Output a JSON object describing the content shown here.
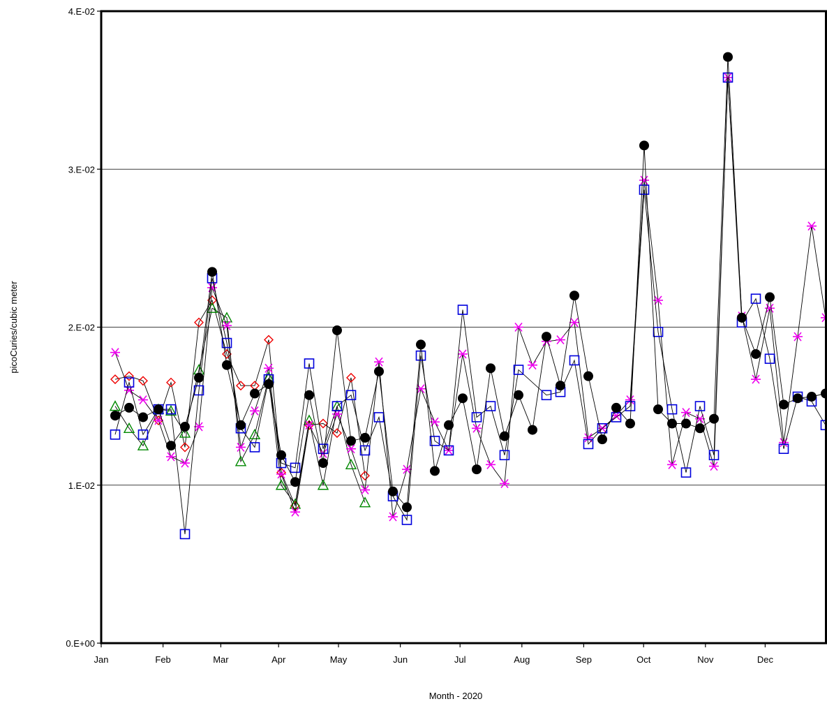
{
  "chart_data": {
    "type": "line",
    "title": "",
    "xlabel": "Month - 2020",
    "ylabel": "picoCuries/cubic meter",
    "ylim": [
      0,
      0.04
    ],
    "yticks": [
      {
        "value": 0,
        "label": "0.E+00"
      },
      {
        "value": 0.01,
        "label": "1.E-02"
      },
      {
        "value": 0.02,
        "label": "2.E-02"
      },
      {
        "value": 0.03,
        "label": "3.E-02"
      },
      {
        "value": 0.04,
        "label": "4.E-02"
      }
    ],
    "grid": "horizontal",
    "legend": "none",
    "xlim": [
      1,
      53
    ],
    "x_unit": "week of 2020 (1 = first of Jan, ticks at first of each month)",
    "xticks": [
      {
        "value": 1.0,
        "label": "Jan"
      },
      {
        "value": 5.43,
        "label": "Feb"
      },
      {
        "value": 9.57,
        "label": "Mar"
      },
      {
        "value": 13.71,
        "label": "Apr"
      },
      {
        "value": 18.0,
        "label": "May"
      },
      {
        "value": 22.43,
        "label": "Jun"
      },
      {
        "value": 26.71,
        "label": "Jul"
      },
      {
        "value": 31.14,
        "label": "Aug"
      },
      {
        "value": 35.57,
        "label": "Sep"
      },
      {
        "value": 39.86,
        "label": "Oct"
      },
      {
        "value": 44.29,
        "label": "Nov"
      },
      {
        "value": 48.57,
        "label": "Dec"
      }
    ],
    "series": [
      {
        "marker": "circle",
        "color": "#000000",
        "points": [
          [
            2.0,
            0.0144
          ],
          [
            3.0,
            0.0149
          ],
          [
            4.0,
            0.0143
          ],
          [
            5.1,
            0.0148
          ],
          [
            6.0,
            0.0125
          ],
          [
            7.0,
            0.0137
          ],
          [
            8.0,
            0.0168
          ],
          [
            8.95,
            0.0235
          ],
          [
            10.0,
            0.0176
          ],
          [
            11.0,
            0.0138
          ],
          [
            12.0,
            0.0158
          ],
          [
            13.0,
            0.0164
          ],
          [
            13.9,
            0.0119
          ],
          [
            14.9,
            0.0102
          ],
          [
            15.9,
            0.0157
          ],
          [
            16.9,
            0.0114
          ],
          [
            17.9,
            0.0198
          ],
          [
            18.9,
            0.0128
          ],
          [
            19.9,
            0.013
          ],
          [
            20.9,
            0.0172
          ],
          [
            21.9,
            0.0096
          ],
          [
            22.9,
            0.0086
          ],
          [
            23.9,
            0.0189
          ],
          [
            24.9,
            0.0109
          ],
          [
            25.9,
            0.0138
          ],
          [
            26.9,
            0.0155
          ],
          [
            27.9,
            0.011
          ],
          [
            28.9,
            0.0174
          ],
          [
            29.9,
            0.0131
          ],
          [
            30.9,
            0.0157
          ],
          [
            31.9,
            0.0135
          ],
          [
            32.9,
            0.0194
          ],
          [
            33.9,
            0.0163
          ],
          [
            34.9,
            0.022
          ],
          [
            35.9,
            0.0169
          ],
          [
            36.9,
            0.0129
          ],
          [
            37.9,
            0.0149
          ],
          [
            38.9,
            0.0139
          ],
          [
            39.9,
            0.0315
          ],
          [
            40.9,
            0.0148
          ],
          [
            41.9,
            0.0139
          ],
          [
            42.9,
            0.0139
          ],
          [
            43.9,
            0.0136
          ],
          [
            44.9,
            0.0142
          ],
          [
            45.9,
            0.0371
          ],
          [
            46.9,
            0.0206
          ],
          [
            47.9,
            0.0183
          ],
          [
            48.9,
            0.0219
          ],
          [
            49.9,
            0.0151
          ],
          [
            50.9,
            0.0155
          ],
          [
            51.9,
            0.0156
          ],
          [
            52.9,
            0.0158
          ]
        ]
      },
      {
        "marker": "square",
        "color": "#0000dd",
        "points": [
          [
            2.0,
            0.0132
          ],
          [
            3.0,
            0.0165
          ],
          [
            4.0,
            0.0132
          ],
          [
            5.1,
            0.0148
          ],
          [
            6.0,
            0.0148
          ],
          [
            7.0,
            0.0069
          ],
          [
            8.0,
            0.016
          ],
          [
            8.95,
            0.0231
          ],
          [
            10.0,
            0.019
          ],
          [
            11.0,
            0.0136
          ],
          [
            12.0,
            0.0124
          ],
          [
            13.0,
            0.0167
          ],
          [
            13.9,
            0.0114
          ],
          [
            14.9,
            0.0111
          ],
          [
            15.9,
            0.0177
          ],
          [
            16.9,
            0.0123
          ],
          [
            17.9,
            0.015
          ],
          [
            18.9,
            0.0157
          ],
          [
            19.9,
            0.0122
          ],
          [
            20.9,
            0.0143
          ],
          [
            21.9,
            0.0093
          ],
          [
            22.9,
            0.0078
          ],
          [
            23.9,
            0.0182
          ],
          [
            24.9,
            0.0128
          ],
          [
            25.9,
            0.0122
          ],
          [
            26.9,
            0.0211
          ],
          [
            27.9,
            0.0143
          ],
          [
            28.9,
            0.015
          ],
          [
            29.9,
            0.0119
          ],
          [
            30.9,
            0.0173
          ],
          [
            32.9,
            0.0157
          ],
          [
            33.9,
            0.0159
          ],
          [
            34.9,
            0.0179
          ],
          [
            35.9,
            0.0126
          ],
          [
            36.9,
            0.0136
          ],
          [
            37.9,
            0.0143
          ],
          [
            38.9,
            0.015
          ],
          [
            39.9,
            0.0287
          ],
          [
            40.9,
            0.0197
          ],
          [
            41.9,
            0.0148
          ],
          [
            42.9,
            0.0108
          ],
          [
            43.9,
            0.015
          ],
          [
            44.9,
            0.0119
          ],
          [
            45.9,
            0.0358
          ],
          [
            46.9,
            0.0203
          ],
          [
            47.9,
            0.0218
          ],
          [
            48.9,
            0.018
          ],
          [
            49.9,
            0.0123
          ],
          [
            50.9,
            0.0156
          ],
          [
            51.9,
            0.0153
          ],
          [
            52.9,
            0.0138
          ]
        ]
      },
      {
        "marker": "asterisk",
        "color": "#ee00ee",
        "points": [
          [
            2.0,
            0.0184
          ],
          [
            3.0,
            0.016
          ],
          [
            4.0,
            0.0154
          ],
          [
            5.1,
            0.0141
          ],
          [
            6.0,
            0.0118
          ],
          [
            7.0,
            0.0114
          ],
          [
            8.0,
            0.0137
          ],
          [
            8.95,
            0.0225
          ],
          [
            10.0,
            0.0201
          ],
          [
            11.0,
            0.0124
          ],
          [
            12.0,
            0.0147
          ],
          [
            13.0,
            0.0174
          ],
          [
            13.9,
            0.0107
          ],
          [
            14.9,
            0.0083
          ],
          [
            15.9,
            0.0138
          ],
          [
            16.9,
            0.012
          ],
          [
            17.9,
            0.0145
          ],
          [
            18.9,
            0.0123
          ],
          [
            19.9,
            0.0097
          ],
          [
            20.9,
            0.0178
          ],
          [
            21.9,
            0.008
          ],
          [
            22.9,
            0.011
          ],
          [
            23.9,
            0.0161
          ],
          [
            24.9,
            0.014
          ],
          [
            25.9,
            0.0122
          ],
          [
            26.9,
            0.0183
          ],
          [
            27.9,
            0.0136
          ],
          [
            28.9,
            0.0113
          ],
          [
            29.9,
            0.0101
          ],
          [
            30.9,
            0.02
          ],
          [
            31.9,
            0.0176
          ],
          [
            32.9,
            0.0191
          ],
          [
            33.9,
            0.0192
          ],
          [
            34.9,
            0.0203
          ],
          [
            35.9,
            0.013
          ],
          [
            36.9,
            0.0136
          ],
          [
            37.9,
            0.0144
          ],
          [
            38.9,
            0.0154
          ],
          [
            39.9,
            0.0293
          ],
          [
            40.9,
            0.0217
          ],
          [
            41.9,
            0.0113
          ],
          [
            42.9,
            0.0146
          ],
          [
            43.9,
            0.0142
          ],
          [
            44.9,
            0.0112
          ],
          [
            45.9,
            0.0358
          ],
          [
            46.9,
            0.0207
          ],
          [
            47.9,
            0.0167
          ],
          [
            48.9,
            0.0212
          ],
          [
            49.9,
            0.0127
          ],
          [
            50.9,
            0.0194
          ],
          [
            51.9,
            0.0264
          ],
          [
            52.9,
            0.0206
          ]
        ]
      },
      {
        "marker": "diamond",
        "color": "#ee0000",
        "points": [
          [
            2.0,
            0.0167
          ],
          [
            3.0,
            0.0169
          ],
          [
            4.0,
            0.0166
          ],
          [
            5.1,
            0.0141
          ],
          [
            6.0,
            0.0165
          ],
          [
            7.0,
            0.0124
          ],
          [
            8.0,
            0.0203
          ],
          [
            8.95,
            0.0217
          ],
          [
            10.0,
            0.0183
          ],
          [
            11.0,
            0.0163
          ],
          [
            12.0,
            0.0163
          ],
          [
            13.0,
            0.0192
          ],
          [
            13.9,
            0.0108
          ],
          [
            14.9,
            0.0087
          ],
          [
            15.9,
            0.0138
          ],
          [
            16.9,
            0.0139
          ],
          [
            17.9,
            0.0133
          ],
          [
            18.9,
            0.0168
          ],
          [
            19.9,
            0.0106
          ]
        ]
      },
      {
        "marker": "triangle",
        "color": "#008800",
        "points": [
          [
            2.0,
            0.015
          ],
          [
            3.0,
            0.0136
          ],
          [
            4.0,
            0.0125
          ],
          [
            5.1,
            0.0148
          ],
          [
            6.0,
            0.0147
          ],
          [
            7.0,
            0.0133
          ],
          [
            8.0,
            0.0173
          ],
          [
            8.95,
            0.0212
          ],
          [
            10.0,
            0.0206
          ],
          [
            11.0,
            0.0115
          ],
          [
            12.0,
            0.0132
          ],
          [
            13.0,
            0.0168
          ],
          [
            13.9,
            0.01
          ],
          [
            14.9,
            0.0088
          ],
          [
            15.9,
            0.0141
          ],
          [
            16.9,
            0.01
          ],
          [
            17.9,
            0.015
          ],
          [
            18.9,
            0.0113
          ],
          [
            19.9,
            0.0089
          ]
        ]
      }
    ]
  }
}
